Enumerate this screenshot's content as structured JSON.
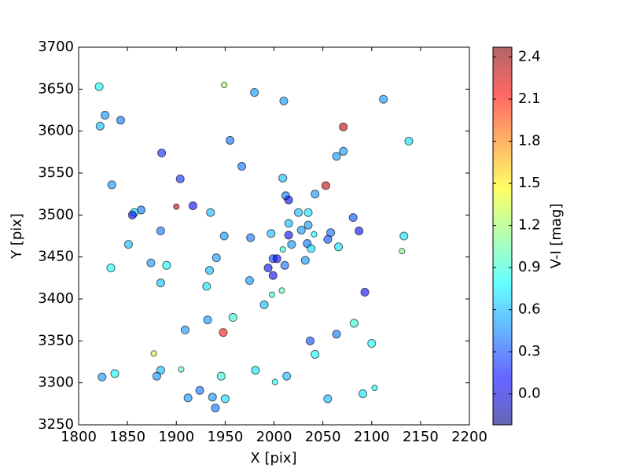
{
  "chart_data": {
    "type": "scatter",
    "x_label": "X [pix]",
    "y_label": "Y [pix]",
    "colorbar_label": "V-I [mag]",
    "colormap": "jet",
    "alpha": 0.6,
    "xlim": [
      1800,
      2200
    ],
    "xticks": [
      1800,
      1850,
      1900,
      1950,
      2000,
      2050,
      2100,
      2150,
      2200
    ],
    "ylim": [
      3250,
      3700
    ],
    "yticks": [
      3250,
      3300,
      3350,
      3400,
      3450,
      3500,
      3550,
      3600,
      3650,
      3700
    ],
    "clim": [
      -0.22,
      2.47
    ],
    "cticks": [
      {
        "value": 0,
        "label": "0.0"
      },
      0.3,
      0.6,
      0.9,
      1.2,
      1.5,
      1.8,
      2.1,
      2.4
    ],
    "series": [
      {
        "x": [
          1821,
          1827,
          1822,
          1843,
          1834,
          1885,
          1904,
          1949,
          1980,
          2010,
          2112,
          2138,
          2071,
          1955,
          1967,
          2071,
          2064,
          2009,
          2053,
          2042,
          2012,
          2015,
          1900,
          1917,
          1864,
          1857,
          1855,
          1935,
          2025,
          2035,
          2081,
          2015,
          2035,
          2028,
          1884,
          2087,
          1997,
          2058,
          2015,
          2041,
          1949,
          2133,
          1976,
          2055,
          1851,
          2018,
          2034,
          2038,
          2066,
          2009,
          2131,
          1941,
          1999,
          2003,
          1874,
          1890,
          1833,
          2011,
          1994,
          2032,
          1934,
          1999,
          1884,
          1975,
          1931,
          2008,
          1998,
          2093,
          1990,
          1958,
          1932,
          2082,
          1909,
          1948,
          2064,
          2037,
          2100,
          1877,
          2042,
          1905,
          1884,
          1837,
          1981,
          1824,
          1880,
          1946,
          2013,
          2001,
          2103,
          2091,
          1924,
          1937,
          1912,
          1950,
          2055,
          1940
        ],
        "values": [
          3653,
          3619,
          3606,
          3613,
          3536,
          3574,
          3543,
          3655,
          3646,
          3636,
          3638,
          3588,
          3605,
          3589,
          3558,
          3576,
          3570,
          3544,
          3535,
          3525,
          3523,
          3518,
          3510,
          3511,
          3506,
          3503,
          3500,
          3503,
          3503,
          3503,
          3497,
          3490,
          3488,
          3482,
          3481,
          3481,
          3478,
          3479,
          3476,
          3477,
          3475,
          3475,
          3473,
          3471,
          3465,
          3465,
          3466,
          3460,
          3462,
          3459,
          3457,
          3449,
          3448,
          3448,
          3443,
          3440,
          3437,
          3440,
          3437,
          3446,
          3434,
          3428,
          3419,
          3422,
          3415,
          3410,
          3405,
          3408,
          3393,
          3378,
          3375,
          3371,
          3363,
          3360,
          3358,
          3350,
          3347,
          3335,
          3334,
          3316,
          3315,
          3311,
          3315,
          3307,
          3308,
          3308,
          3308,
          3301,
          3294,
          3287,
          3291,
          3283,
          3282,
          3281,
          3281,
          3270
        ],
        "colors": [
          0.8,
          0.5,
          0.6,
          0.4,
          0.5,
          0.2,
          0.2,
          1.2,
          0.5,
          0.5,
          0.5,
          0.7,
          2.3,
          0.4,
          0.4,
          0.5,
          0.5,
          0.6,
          2.3,
          0.5,
          0.4,
          0.1,
          2.3,
          0.1,
          0.4,
          0.7,
          0.1,
          0.6,
          0.6,
          0.7,
          0.3,
          0.6,
          0.5,
          0.5,
          0.4,
          0.1,
          0.6,
          0.4,
          0.1,
          0.8,
          0.5,
          0.7,
          0.4,
          0.3,
          0.6,
          0.5,
          0.4,
          0.7,
          0.7,
          0.9,
          1.1,
          0.5,
          0.3,
          0.1,
          0.5,
          0.8,
          0.8,
          0.4,
          0.1,
          0.5,
          0.6,
          0.1,
          0.6,
          0.5,
          0.7,
          1.0,
          0.9,
          0.1,
          0.6,
          0.9,
          0.5,
          0.9,
          0.5,
          2.1,
          0.4,
          0.3,
          0.8,
          1.3,
          0.8,
          1.0,
          0.6,
          0.8,
          0.7,
          0.5,
          0.5,
          0.9,
          0.6,
          0.8,
          0.8,
          0.7,
          0.4,
          0.5,
          0.5,
          0.7,
          0.6,
          0.4
        ],
        "sizes": [
          40,
          40,
          40,
          40,
          40,
          40,
          40,
          20,
          40,
          40,
          40,
          40,
          40,
          40,
          40,
          40,
          40,
          40,
          40,
          40,
          40,
          40,
          20,
          40,
          40,
          40,
          40,
          40,
          40,
          40,
          40,
          40,
          40,
          40,
          40,
          40,
          40,
          40,
          40,
          20,
          40,
          40,
          40,
          40,
          40,
          40,
          40,
          40,
          40,
          20,
          20,
          40,
          40,
          40,
          40,
          40,
          40,
          40,
          40,
          40,
          40,
          40,
          40,
          40,
          40,
          20,
          20,
          40,
          40,
          40,
          40,
          40,
          40,
          40,
          40,
          40,
          40,
          20,
          40,
          20,
          40,
          40,
          40,
          40,
          40,
          40,
          40,
          20,
          20,
          40,
          40,
          40,
          40,
          40,
          40,
          40
        ]
      }
    ]
  }
}
